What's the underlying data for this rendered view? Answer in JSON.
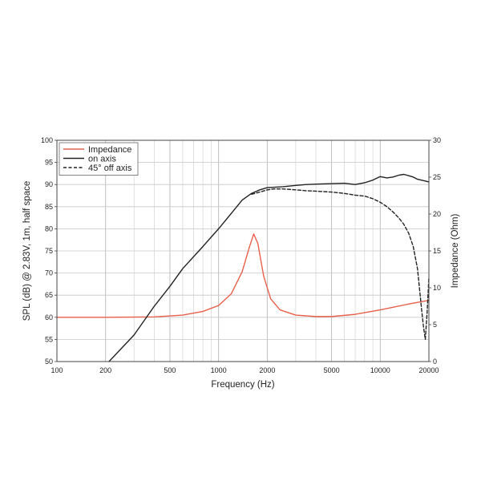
{
  "chart_data": {
    "type": "line",
    "xlabel": "Frequency (Hz)",
    "ylabel": "SPL (dB) @ 2.83V, 1m, half space",
    "y2label": "Impedance (Ohm)",
    "xscale": "log",
    "xlim": [
      100,
      20000
    ],
    "ylim": [
      50,
      100
    ],
    "y2lim": [
      0,
      30
    ],
    "x_ticks": [
      100,
      200,
      500,
      1000,
      2000,
      5000,
      10000,
      20000
    ],
    "x_tick_labels": [
      "100",
      "200",
      "500",
      "1000",
      "2000",
      "5000",
      "10000",
      "20000"
    ],
    "y_ticks": [
      50,
      55,
      60,
      65,
      70,
      75,
      80,
      85,
      90,
      95,
      100
    ],
    "y_tick_labels": [
      "50",
      "55",
      "60",
      "65",
      "70",
      "75",
      "80",
      "85",
      "90",
      "95",
      "100"
    ],
    "y2_ticks": [
      0,
      5,
      10,
      15,
      20,
      25,
      30
    ],
    "y2_tick_labels": [
      "0",
      "5",
      "10",
      "15",
      "20",
      "25",
      "30"
    ],
    "grid": true,
    "legend_position": "top-left",
    "series": [
      {
        "name": "Impedance",
        "axis": "right",
        "color": "#e8604c",
        "style": "solid",
        "x": [
          100,
          200,
          400,
          600,
          800,
          1000,
          1200,
          1400,
          1550,
          1650,
          1750,
          1900,
          2100,
          2400,
          3000,
          4000,
          5000,
          7000,
          10000,
          15000,
          20000
        ],
        "y": [
          6.0,
          6.0,
          6.05,
          6.3,
          6.8,
          7.6,
          9.2,
          12.2,
          15.5,
          17.3,
          16.0,
          11.6,
          8.5,
          7.0,
          6.3,
          6.1,
          6.1,
          6.4,
          7.0,
          7.8,
          8.3
        ]
      },
      {
        "name": "on axis",
        "axis": "left",
        "color": "#222222",
        "style": "solid",
        "x": [
          210,
          300,
          400,
          500,
          600,
          800,
          1000,
          1200,
          1400,
          1600,
          1800,
          2000,
          2500,
          3000,
          3500,
          4000,
          5000,
          6000,
          7000,
          8000,
          9000,
          10000,
          11000,
          12000,
          13000,
          14000,
          15000,
          16000,
          17000,
          18000,
          20000
        ],
        "y": [
          50.0,
          56.0,
          62.5,
          67.0,
          71.0,
          76.0,
          80.0,
          83.5,
          86.5,
          88.0,
          88.8,
          89.3,
          89.5,
          89.8,
          90.0,
          90.1,
          90.2,
          90.3,
          90.0,
          90.4,
          91.0,
          91.8,
          91.5,
          91.7,
          92.1,
          92.3,
          92.0,
          91.7,
          91.2,
          91.0,
          90.6
        ]
      },
      {
        "name": "45° off axis",
        "axis": "left",
        "color": "#222222",
        "style": "dashed",
        "x": [
          1600,
          1800,
          2000,
          2200,
          2500,
          3000,
          3500,
          4000,
          5000,
          6000,
          7000,
          8000,
          9000,
          10000,
          11000,
          12000,
          13000,
          14000,
          15000,
          16000,
          17000,
          18000,
          18500,
          19000,
          19500,
          20000
        ],
        "y": [
          87.8,
          88.3,
          88.8,
          89.0,
          89.0,
          88.8,
          88.6,
          88.5,
          88.3,
          88.0,
          87.6,
          87.4,
          86.8,
          86.0,
          85.0,
          83.8,
          82.5,
          81.0,
          79.0,
          76.0,
          71.0,
          62.0,
          58.0,
          55.0,
          61.0,
          69.0
        ]
      }
    ]
  }
}
